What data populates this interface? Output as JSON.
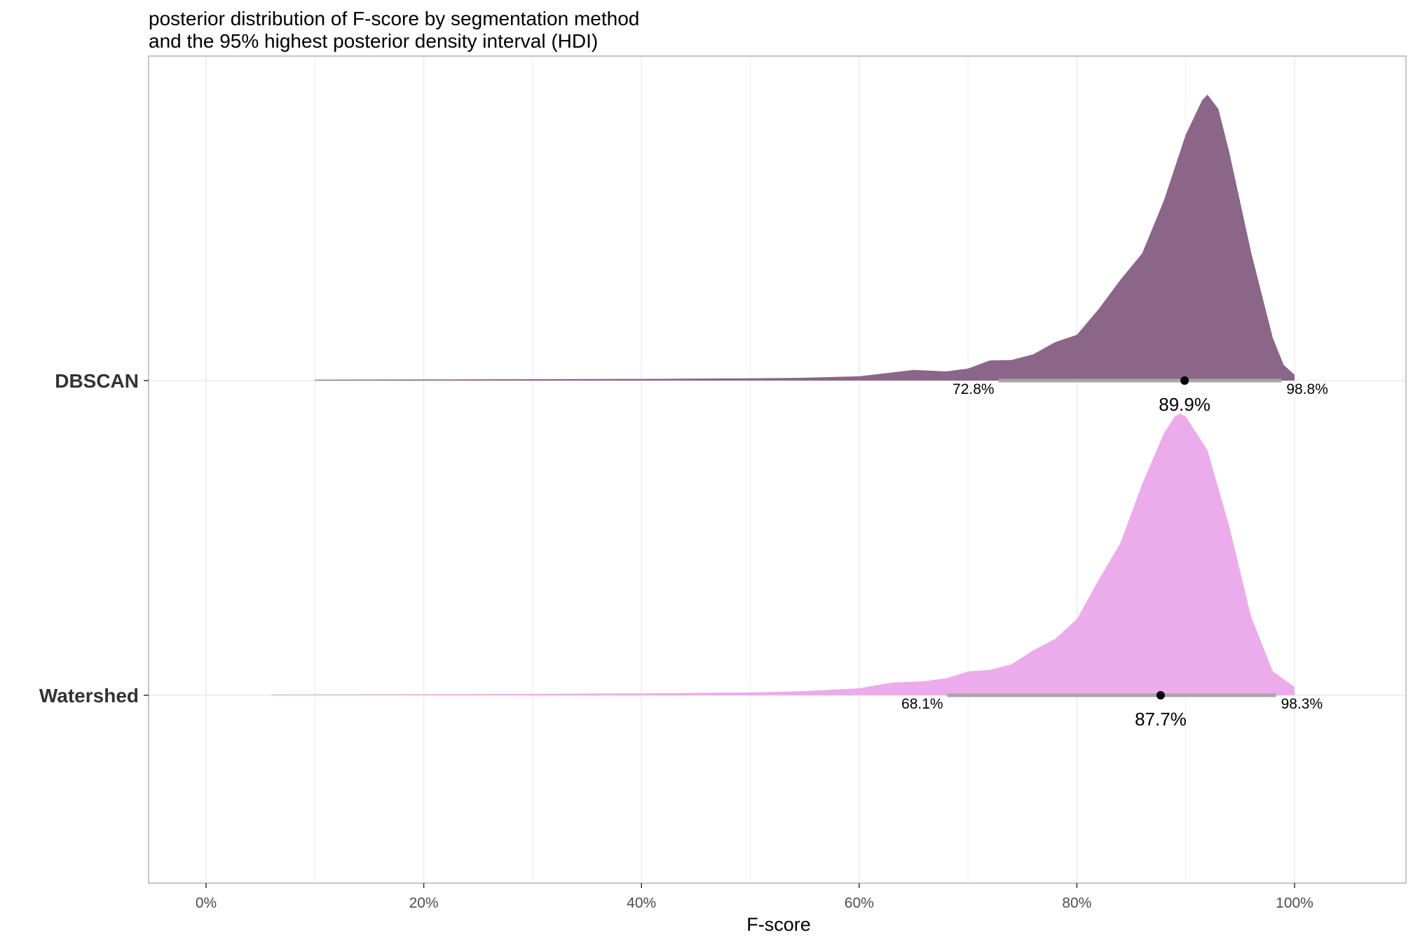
{
  "chart_data": {
    "type": "area",
    "subtype": "half-eye density (posterior distribution) with point interval",
    "title_lines": [
      "posterior distribution of F-score by segmentation method",
      "and the 95% highest posterior density interval (HDI)"
    ],
    "xlabel": "F-score",
    "ylabel": "",
    "xlim": [
      -0.053,
      1.102
    ],
    "x_ticks": [
      0,
      0.2,
      0.4,
      0.6,
      0.8,
      1.0
    ],
    "x_tick_labels": [
      "0%",
      "20%",
      "40%",
      "60%",
      "80%",
      "100%"
    ],
    "categories": [
      "DBSCAN",
      "Watershed"
    ],
    "grid": true,
    "legend": "none",
    "series": [
      {
        "name": "DBSCAN",
        "color": "#8b6688",
        "hdi": {
          "lower": 0.728,
          "median": 0.899,
          "upper": 0.988,
          "lower_label": "72.8%",
          "median_label": "89.9%",
          "upper_label": "98.8%"
        },
        "density": [
          [
            0.1,
            0.003
          ],
          [
            0.2,
            0.004
          ],
          [
            0.3,
            0.005
          ],
          [
            0.4,
            0.006
          ],
          [
            0.5,
            0.008
          ],
          [
            0.55,
            0.01
          ],
          [
            0.6,
            0.015
          ],
          [
            0.65,
            0.025
          ],
          [
            0.68,
            0.032
          ],
          [
            0.7,
            0.042
          ],
          [
            0.72,
            0.058
          ],
          [
            0.74,
            0.072
          ],
          [
            0.76,
            0.092
          ],
          [
            0.78,
            0.122
          ],
          [
            0.8,
            0.16
          ],
          [
            0.82,
            0.25
          ],
          [
            0.84,
            0.34
          ],
          [
            0.86,
            0.445
          ],
          [
            0.88,
            0.63
          ],
          [
            0.9,
            0.86
          ],
          [
            0.915,
            0.98
          ],
          [
            0.92,
            1.0
          ],
          [
            0.93,
            0.95
          ],
          [
            0.94,
            0.8
          ],
          [
            0.96,
            0.45
          ],
          [
            0.98,
            0.15
          ],
          [
            0.99,
            0.055
          ],
          [
            1.0,
            0.02
          ]
        ]
      },
      {
        "name": "Watershed",
        "color": "#ecaceb",
        "hdi": {
          "lower": 0.681,
          "median": 0.877,
          "upper": 0.983,
          "lower_label": "68.1%",
          "median_label": "87.7%",
          "upper_label": "98.3%"
        },
        "density": [
          [
            0.06,
            0.003
          ],
          [
            0.2,
            0.004
          ],
          [
            0.3,
            0.005
          ],
          [
            0.4,
            0.007
          ],
          [
            0.5,
            0.01
          ],
          [
            0.55,
            0.015
          ],
          [
            0.6,
            0.025
          ],
          [
            0.63,
            0.035
          ],
          [
            0.66,
            0.05
          ],
          [
            0.68,
            0.06
          ],
          [
            0.7,
            0.075
          ],
          [
            0.72,
            0.09
          ],
          [
            0.74,
            0.11
          ],
          [
            0.76,
            0.15
          ],
          [
            0.78,
            0.2
          ],
          [
            0.8,
            0.27
          ],
          [
            0.82,
            0.4
          ],
          [
            0.84,
            0.54
          ],
          [
            0.86,
            0.75
          ],
          [
            0.88,
            0.93
          ],
          [
            0.89,
            0.99
          ],
          [
            0.895,
            1.0
          ],
          [
            0.9,
            0.99
          ],
          [
            0.92,
            0.87
          ],
          [
            0.94,
            0.6
          ],
          [
            0.96,
            0.28
          ],
          [
            0.98,
            0.085
          ],
          [
            1.0,
            0.03
          ]
        ]
      }
    ]
  }
}
